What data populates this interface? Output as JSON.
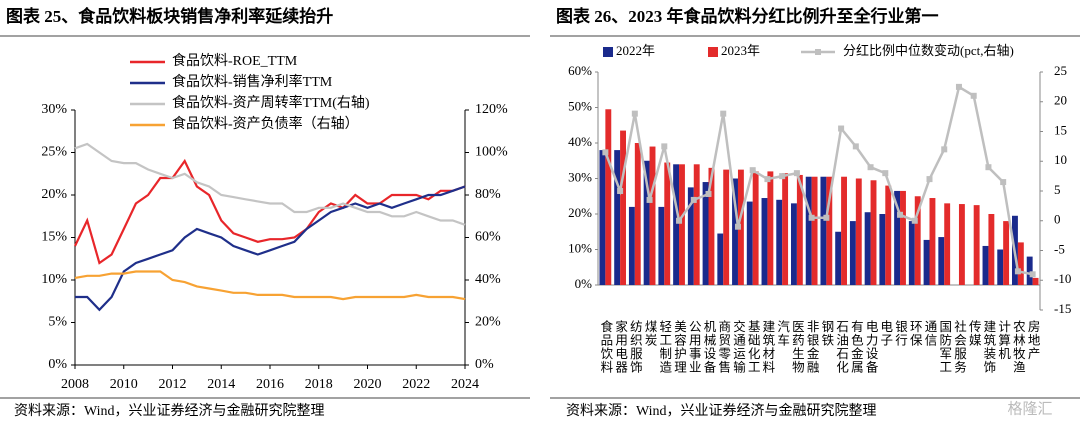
{
  "chart_data": [
    {
      "type": "line",
      "title": "图表 25、食品饮料板块销售净利率延续抬升",
      "source": "资料来源：Wind，兴业证券经济与金融研究院整理",
      "x": [
        2008,
        2008.5,
        2009,
        2009.5,
        2010,
        2010.5,
        2011,
        2011.5,
        2012,
        2012.5,
        2013,
        2013.5,
        2014,
        2014.5,
        2015,
        2015.5,
        2016,
        2016.5,
        2017,
        2017.5,
        2018,
        2018.5,
        2019,
        2019.5,
        2020,
        2020.5,
        2021,
        2021.5,
        2022,
        2022.5,
        2023,
        2023.5,
        2024
      ],
      "xlim": [
        2008,
        2024
      ],
      "xticks": [
        2008,
        2010,
        2012,
        2014,
        2016,
        2018,
        2020,
        2022,
        2024
      ],
      "ylim": [
        0,
        30
      ],
      "yticks": [
        {
          "value": 0,
          "label": "0%"
        },
        {
          "value": 5,
          "label": "5%"
        },
        {
          "value": 10,
          "label": "10%"
        },
        {
          "value": 15,
          "label": "15%"
        },
        {
          "value": 20,
          "label": "20%"
        },
        {
          "value": 25,
          "label": "25%"
        },
        {
          "value": 30,
          "label": "30%"
        }
      ],
      "y2lim": [
        0,
        120
      ],
      "y2ticks": [
        {
          "value": 0,
          "label": "0%"
        },
        {
          "value": 20,
          "label": "20%"
        },
        {
          "value": 40,
          "label": "40%"
        },
        {
          "value": 60,
          "label": "60%"
        },
        {
          "value": 80,
          "label": "80%"
        },
        {
          "value": 100,
          "label": "100%"
        },
        {
          "value": 120,
          "label": "120%"
        }
      ],
      "legend": "upper left",
      "series": [
        {
          "name": "食品饮料-ROE_TTM",
          "color": "#e8262a",
          "values": [
            14,
            17,
            12,
            13,
            16,
            19,
            20,
            22,
            22,
            24,
            21,
            20,
            17,
            15.5,
            15,
            14.5,
            14.8,
            14.8,
            15,
            16,
            18,
            19,
            18.5,
            20,
            19,
            19,
            20,
            20,
            20,
            19.5,
            20.5,
            20.5,
            21
          ]
        },
        {
          "name": "食品饮料-销售净利率TTM",
          "color": "#1f2f8a",
          "values": [
            8,
            8,
            6.5,
            8,
            11,
            12,
            12.5,
            13,
            13.5,
            15,
            16,
            15.5,
            15,
            14,
            13.5,
            13,
            13.5,
            14,
            14.5,
            16,
            17,
            18,
            18.5,
            19,
            18.5,
            19,
            18.5,
            19,
            19.5,
            20,
            20,
            20.5,
            21
          ]
        },
        {
          "name": "食品饮料-资产周转率TTM(右轴)",
          "color": "#c4c4c4",
          "axis": "y2",
          "values": [
            102,
            104,
            100,
            96,
            95,
            95,
            92,
            90,
            88,
            90,
            86,
            84,
            80,
            79,
            78,
            77,
            76,
            76,
            72,
            72,
            74,
            74,
            76,
            74,
            72,
            72,
            70,
            70,
            72,
            70,
            68,
            68,
            66
          ]
        },
        {
          "name": "食品饮料-资产负债率（右轴）",
          "color": "#f7a233",
          "axis": "y2",
          "values": [
            41,
            42,
            42,
            43,
            43,
            44,
            44,
            44,
            40,
            39,
            37,
            36,
            35,
            34,
            34,
            33,
            33,
            33,
            32,
            32,
            32,
            32,
            31,
            32,
            32,
            32,
            32,
            32,
            33,
            32,
            32,
            32,
            31
          ]
        }
      ]
    },
    {
      "type": "bar",
      "title": "图表 26、2023 年食品饮料分红比例升至全行业第一",
      "source": "资料来源：Wind，兴业证券经济与金融研究院整理",
      "watermark": "格隆汇",
      "categories": [
        "食品饮料",
        "家用电器",
        "纺织服饰",
        "煤炭",
        "轻工制造",
        "美容护理",
        "公用事业",
        "机械设备",
        "商贸零售",
        "交通运输",
        "基础化工",
        "建筑材料",
        "汽车",
        "医药生物",
        "非银金融",
        "钢铁",
        "石油石化",
        "有色金属",
        "电力设备",
        "电子",
        "银行",
        "环保",
        "通信",
        "国防军工",
        "社会服务",
        "传媒",
        "建筑装饰",
        "计算机",
        "农林牧渔",
        "房地产"
      ],
      "ylim": [
        0,
        60
      ],
      "yticks": [
        {
          "value": 0,
          "label": "0%"
        },
        {
          "value": 10,
          "label": "10%"
        },
        {
          "value": 20,
          "label": "20%"
        },
        {
          "value": 30,
          "label": "30%"
        },
        {
          "value": 40,
          "label": "40%"
        },
        {
          "value": 50,
          "label": "50%"
        },
        {
          "value": 60,
          "label": "60%"
        }
      ],
      "y2lim": [
        -15,
        25
      ],
      "y2ticks": [
        -15,
        -10,
        -5,
        0,
        5,
        10,
        15,
        20,
        25
      ],
      "legend": "upper left",
      "series": [
        {
          "name": "2022年",
          "color": "#1a2a8c",
          "type": "bar",
          "values": [
            38,
            38,
            22,
            35,
            22,
            34,
            27.5,
            29,
            14.5,
            30,
            23.5,
            24.5,
            24,
            23,
            30.5,
            30.5,
            15,
            18,
            20.5,
            20,
            26.5,
            18,
            12.7,
            13.5,
            null,
            null,
            11,
            10,
            19.5,
            8
          ]
        },
        {
          "name": "2023年",
          "color": "#e32b2b",
          "type": "bar",
          "values": [
            49.5,
            43.5,
            40,
            39,
            34.5,
            34,
            34,
            33,
            32.5,
            32.5,
            32,
            32,
            31.5,
            31,
            30.5,
            30.5,
            30.5,
            30,
            29.5,
            28,
            26.5,
            25,
            24.5,
            23,
            22.8,
            22.5,
            20,
            18,
            12,
            2
          ]
        },
        {
          "name": "分红比例中位数变动(pct,右轴)",
          "color": "#bfbfbf",
          "type": "line",
          "axis": "y2",
          "values": [
            11.5,
            5,
            18,
            3.5,
            12.5,
            0,
            3.5,
            4.5,
            18,
            -1,
            8.5,
            7,
            7.5,
            8,
            0.5,
            0.5,
            15.5,
            12.5,
            9,
            8,
            1,
            0,
            7,
            12,
            22.5,
            21,
            9,
            6.5,
            -8.5,
            -9
          ]
        }
      ]
    }
  ]
}
